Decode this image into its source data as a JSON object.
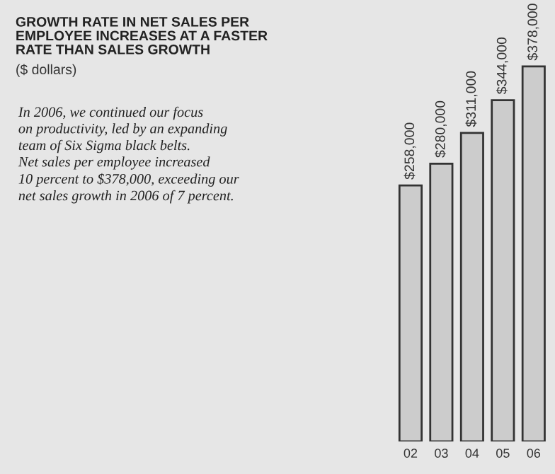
{
  "chart_data": {
    "type": "bar",
    "title": "GROWTH RATE IN NET SALES PER\nEMPLOYEE INCREASES AT A FASTER\nRATE THAN SALES GROWTH",
    "subtitle": "($ dollars)",
    "annotations": [
      "In 2006, we continued our focus\non productivity, led by an expanding\nteam of Six Sigma black belts.\nNet sales per employee increased\n10 percent to $378,000, exceeding our\nnet sales growth in 2006 of 7 percent."
    ],
    "categories": [
      "02",
      "03",
      "04",
      "05",
      "06"
    ],
    "values": [
      258000,
      280000,
      311000,
      344000,
      378000
    ],
    "value_labels": [
      "$258,000",
      "$280,000",
      "$311,000",
      "$344,000",
      "$378,000"
    ],
    "color": "#cccccc",
    "ylim": [
      0,
      445000
    ],
    "tick_labels": "x",
    "grid": false
  }
}
